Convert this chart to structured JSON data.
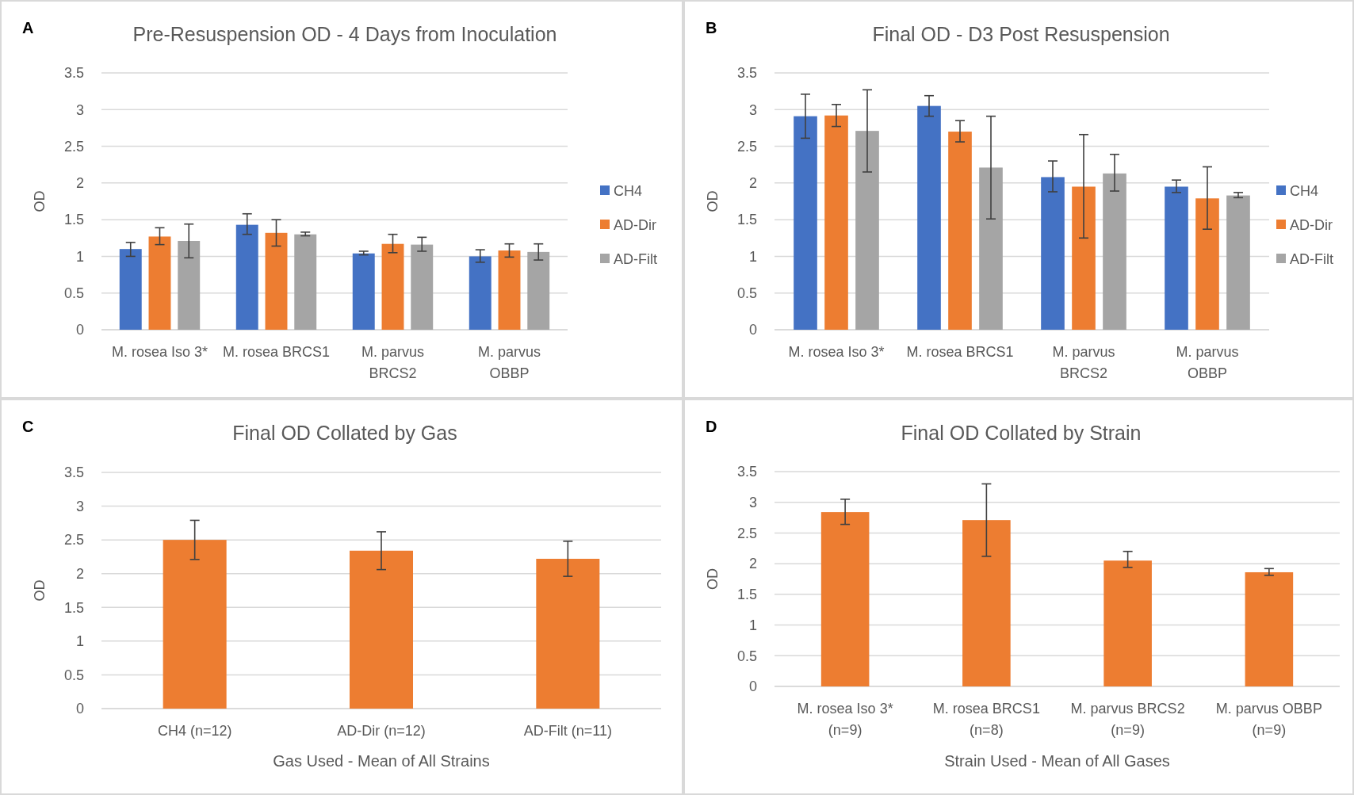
{
  "chart_data": [
    {
      "type": "bar",
      "title": "Pre-Resuspension OD - 4 Days from Inoculation",
      "ylabel": "OD",
      "annotations": [
        "A"
      ],
      "categories": [
        "M. rosea Iso 3*",
        "M. rosea BRCS1",
        "M. parvus\nBRCS2",
        "M. parvus\nOBBP"
      ],
      "ylim": [
        0,
        3.5
      ],
      "yticks": [
        0,
        0.5,
        1,
        1.5,
        2,
        2.5,
        3,
        3.5
      ],
      "grid": "y",
      "legend": "right",
      "series": [
        {
          "name": "CH4",
          "color": "#4472c4",
          "values": [
            1.1,
            1.43,
            1.04,
            1.0
          ],
          "errors": [
            [
              1.0,
              1.19
            ],
            [
              1.3,
              1.58
            ],
            [
              1.02,
              1.07
            ],
            [
              0.92,
              1.09
            ]
          ]
        },
        {
          "name": "AD-Dir",
          "color": "#ed7d31",
          "values": [
            1.27,
            1.32,
            1.17,
            1.08
          ],
          "errors": [
            [
              1.16,
              1.39
            ],
            [
              1.14,
              1.5
            ],
            [
              1.05,
              1.3
            ],
            [
              0.99,
              1.17
            ]
          ]
        },
        {
          "name": "AD-Filt",
          "color": "#a5a5a5",
          "values": [
            1.21,
            1.3,
            1.16,
            1.06
          ],
          "errors": [
            [
              0.98,
              1.44
            ],
            [
              1.28,
              1.33
            ],
            [
              1.07,
              1.26
            ],
            [
              0.95,
              1.17
            ]
          ]
        }
      ]
    },
    {
      "type": "bar",
      "title": "Final OD - D3 Post Resuspension",
      "ylabel": "OD",
      "annotations": [
        "B"
      ],
      "categories": [
        "M. rosea Iso 3*",
        "M. rosea BRCS1",
        "M. parvus\nBRCS2",
        "M. parvus\nOBBP"
      ],
      "ylim": [
        0,
        3.5
      ],
      "yticks": [
        0,
        0.5,
        1,
        1.5,
        2,
        2.5,
        3,
        3.5
      ],
      "grid": "y",
      "legend": "right",
      "series": [
        {
          "name": "CH4",
          "color": "#4472c4",
          "values": [
            2.91,
            3.05,
            2.08,
            1.95
          ],
          "errors": [
            [
              2.61,
              3.21
            ],
            [
              2.91,
              3.19
            ],
            [
              1.88,
              2.3
            ],
            [
              1.87,
              2.04
            ]
          ]
        },
        {
          "name": "AD-Dir",
          "color": "#ed7d31",
          "values": [
            2.92,
            2.7,
            1.95,
            1.79
          ],
          "errors": [
            [
              2.77,
              3.07
            ],
            [
              2.56,
              2.85
            ],
            [
              1.25,
              2.66
            ],
            [
              1.37,
              2.22
            ]
          ]
        },
        {
          "name": "AD-Filt",
          "color": "#a5a5a5",
          "values": [
            2.71,
            2.21,
            2.13,
            1.83
          ],
          "errors": [
            [
              2.15,
              3.27
            ],
            [
              1.51,
              2.91
            ],
            [
              1.89,
              2.39
            ],
            [
              1.8,
              1.87
            ]
          ]
        }
      ]
    },
    {
      "type": "bar",
      "title": "Final OD Collated by Gas",
      "xlabel": "Gas Used - Mean of All Strains",
      "ylabel": "OD",
      "annotations": [
        "C"
      ],
      "categories": [
        "CH4 (n=12)",
        "AD-Dir (n=12)",
        "AD-Filt (n=11)"
      ],
      "ylim": [
        0,
        3.5
      ],
      "yticks": [
        0,
        0.5,
        1,
        1.5,
        2,
        2.5,
        3,
        3.5
      ],
      "grid": "y",
      "series": [
        {
          "color": "#ed7d31",
          "values": [
            2.5,
            2.34,
            2.22
          ],
          "errors": [
            [
              2.21,
              2.79
            ],
            [
              2.06,
              2.62
            ],
            [
              1.96,
              2.48
            ]
          ]
        }
      ]
    },
    {
      "type": "bar",
      "title": "Final OD Collated by Strain",
      "xlabel": "Strain Used - Mean of All  Gases",
      "ylabel": "OD",
      "annotations": [
        "D"
      ],
      "categories": [
        "M. rosea Iso 3*\n(n=9)",
        "M. rosea BRCS1\n(n=8)",
        "M. parvus BRCS2\n(n=9)",
        "M. parvus OBBP\n(n=9)"
      ],
      "ylim": [
        0,
        3.5
      ],
      "yticks": [
        0,
        0.5,
        1,
        1.5,
        2,
        2.5,
        3,
        3.5
      ],
      "grid": "y",
      "series": [
        {
          "color": "#ed7d31",
          "values": [
            2.84,
            2.71,
            2.05,
            1.86
          ],
          "errors": [
            [
              2.64,
              3.05
            ],
            [
              2.12,
              3.3
            ],
            [
              1.94,
              2.2
            ],
            [
              1.81,
              1.92
            ]
          ]
        }
      ]
    }
  ]
}
